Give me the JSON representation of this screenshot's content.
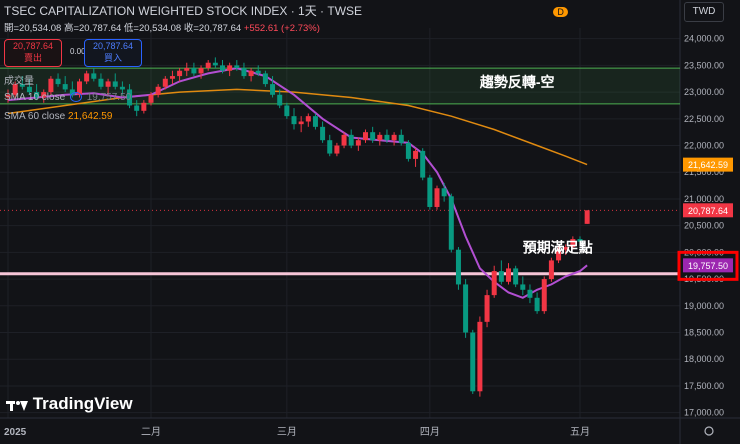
{
  "header": {
    "title": "TSEC CAPITALIZATION WEIGHTED STOCK INDEX · 1天 · TWSE",
    "ohlc_open": "開=20,534.08",
    "ohlc_high": "高=20,787.64",
    "ohlc_low": "低=20,534.08",
    "ohlc_close": "收=20,787.64",
    "ohlc_change": "+552.61 (+2.73%)"
  },
  "trade": {
    "sell_price": "20,787.64",
    "sell_label": "賣出",
    "spread": "0.00",
    "buy_price": "20,787.64",
    "buy_label": "買入"
  },
  "legend": {
    "volume": "成交量",
    "ma10_name": "SMA 10 close",
    "ma10_value": "19,757.50",
    "ma60_name": "SMA 60 close",
    "ma60_value": "21,642.59"
  },
  "toolbar": {
    "currency": "TWD",
    "d_badge": "D"
  },
  "watermark": "TradingView",
  "chart_data": {
    "type": "candlestick",
    "title": "TSEC CAPITALIZATION WEIGHTED STOCK INDEX",
    "ylim": [
      16900,
      24200
    ],
    "yticks": [
      24000,
      23500,
      23000,
      22500,
      22000,
      21500,
      21000,
      20500,
      20000,
      19500,
      19000,
      18500,
      18000,
      17500,
      17000
    ],
    "ytick_labels": [
      "24,000.00",
      "23,500.00",
      "23,000.00",
      "22,500.00",
      "22,000.00",
      "21,500.00",
      "21,000.00",
      "20,500.00",
      "20,000.00",
      "19,500.00",
      "19,000.00",
      "18,500.00",
      "18,000.00",
      "17,500.00",
      "17,000.00"
    ],
    "x_labels": [
      {
        "i": 0,
        "label": "2025"
      },
      {
        "i": 20,
        "label": "二月"
      },
      {
        "i": 39,
        "label": "三月"
      },
      {
        "i": 59,
        "label": "四月"
      },
      {
        "i": 80,
        "label": "五月"
      }
    ],
    "n_slots": 90,
    "candles": [
      {
        "i": 0,
        "o": 22900,
        "h": 23050,
        "l": 22800,
        "c": 22950
      },
      {
        "i": 1,
        "o": 22950,
        "h": 23200,
        "l": 22900,
        "c": 23150
      },
      {
        "i": 2,
        "o": 23150,
        "h": 23300,
        "l": 23050,
        "c": 23100
      },
      {
        "i": 3,
        "o": 23100,
        "h": 23250,
        "l": 22950,
        "c": 23000
      },
      {
        "i": 4,
        "o": 23000,
        "h": 23150,
        "l": 22850,
        "c": 22900
      },
      {
        "i": 5,
        "o": 22900,
        "h": 23050,
        "l": 22800,
        "c": 23000
      },
      {
        "i": 6,
        "o": 23000,
        "h": 23300,
        "l": 22950,
        "c": 23250
      },
      {
        "i": 7,
        "o": 23250,
        "h": 23350,
        "l": 23100,
        "c": 23150
      },
      {
        "i": 8,
        "o": 23150,
        "h": 23300,
        "l": 23000,
        "c": 23050
      },
      {
        "i": 9,
        "o": 23050,
        "h": 23200,
        "l": 22900,
        "c": 22950
      },
      {
        "i": 10,
        "o": 22950,
        "h": 23250,
        "l": 22900,
        "c": 23200
      },
      {
        "i": 11,
        "o": 23200,
        "h": 23400,
        "l": 23150,
        "c": 23350
      },
      {
        "i": 12,
        "o": 23350,
        "h": 23450,
        "l": 23200,
        "c": 23250
      },
      {
        "i": 13,
        "o": 23250,
        "h": 23350,
        "l": 23050,
        "c": 23100
      },
      {
        "i": 14,
        "o": 23100,
        "h": 23250,
        "l": 22950,
        "c": 23200
      },
      {
        "i": 15,
        "o": 23200,
        "h": 23350,
        "l": 23050,
        "c": 23100
      },
      {
        "i": 16,
        "o": 23100,
        "h": 23200,
        "l": 22950,
        "c": 23050
      },
      {
        "i": 17,
        "o": 23050,
        "h": 23150,
        "l": 22700,
        "c": 22750
      },
      {
        "i": 18,
        "o": 22750,
        "h": 22850,
        "l": 22550,
        "c": 22650
      },
      {
        "i": 19,
        "o": 22650,
        "h": 22850,
        "l": 22600,
        "c": 22800
      },
      {
        "i": 20,
        "o": 22800,
        "h": 23000,
        "l": 22750,
        "c": 22950
      },
      {
        "i": 21,
        "o": 22950,
        "h": 23150,
        "l": 22900,
        "c": 23100
      },
      {
        "i": 22,
        "o": 23100,
        "h": 23300,
        "l": 23050,
        "c": 23250
      },
      {
        "i": 23,
        "o": 23250,
        "h": 23400,
        "l": 23150,
        "c": 23300
      },
      {
        "i": 24,
        "o": 23300,
        "h": 23450,
        "l": 23200,
        "c": 23400
      },
      {
        "i": 25,
        "o": 23400,
        "h": 23550,
        "l": 23300,
        "c": 23450
      },
      {
        "i": 26,
        "o": 23450,
        "h": 23550,
        "l": 23300,
        "c": 23350
      },
      {
        "i": 27,
        "o": 23350,
        "h": 23500,
        "l": 23250,
        "c": 23450
      },
      {
        "i": 28,
        "o": 23450,
        "h": 23600,
        "l": 23400,
        "c": 23550
      },
      {
        "i": 29,
        "o": 23550,
        "h": 23650,
        "l": 23450,
        "c": 23500
      },
      {
        "i": 30,
        "o": 23500,
        "h": 23600,
        "l": 23350,
        "c": 23400
      },
      {
        "i": 31,
        "o": 23400,
        "h": 23550,
        "l": 23300,
        "c": 23500
      },
      {
        "i": 32,
        "o": 23500,
        "h": 23600,
        "l": 23400,
        "c": 23450
      },
      {
        "i": 33,
        "o": 23450,
        "h": 23550,
        "l": 23250,
        "c": 23300
      },
      {
        "i": 34,
        "o": 23300,
        "h": 23450,
        "l": 23200,
        "c": 23400
      },
      {
        "i": 35,
        "o": 23400,
        "h": 23500,
        "l": 23300,
        "c": 23350
      },
      {
        "i": 36,
        "o": 23350,
        "h": 23400,
        "l": 23100,
        "c": 23150
      },
      {
        "i": 37,
        "o": 23150,
        "h": 23300,
        "l": 22900,
        "c": 22950
      },
      {
        "i": 38,
        "o": 22950,
        "h": 23050,
        "l": 22700,
        "c": 22750
      },
      {
        "i": 39,
        "o": 22750,
        "h": 22800,
        "l": 22500,
        "c": 22550
      },
      {
        "i": 40,
        "o": 22550,
        "h": 22700,
        "l": 22300,
        "c": 22400
      },
      {
        "i": 41,
        "o": 22400,
        "h": 22550,
        "l": 22250,
        "c": 22450
      },
      {
        "i": 42,
        "o": 22450,
        "h": 22600,
        "l": 22350,
        "c": 22550
      },
      {
        "i": 43,
        "o": 22550,
        "h": 22600,
        "l": 22300,
        "c": 22350
      },
      {
        "i": 44,
        "o": 22350,
        "h": 22450,
        "l": 22050,
        "c": 22100
      },
      {
        "i": 45,
        "o": 22100,
        "h": 22200,
        "l": 21800,
        "c": 21850
      },
      {
        "i": 46,
        "o": 21850,
        "h": 22050,
        "l": 21800,
        "c": 22000
      },
      {
        "i": 47,
        "o": 22000,
        "h": 22250,
        "l": 21950,
        "c": 22200
      },
      {
        "i": 48,
        "o": 22200,
        "h": 22300,
        "l": 21950,
        "c": 22000
      },
      {
        "i": 49,
        "o": 22000,
        "h": 22150,
        "l": 21900,
        "c": 22100
      },
      {
        "i": 50,
        "o": 22100,
        "h": 22300,
        "l": 22050,
        "c": 22250
      },
      {
        "i": 51,
        "o": 22250,
        "h": 22350,
        "l": 22050,
        "c": 22100
      },
      {
        "i": 52,
        "o": 22100,
        "h": 22250,
        "l": 22000,
        "c": 22200
      },
      {
        "i": 53,
        "o": 22200,
        "h": 22300,
        "l": 22050,
        "c": 22100
      },
      {
        "i": 54,
        "o": 22100,
        "h": 22250,
        "l": 22000,
        "c": 22200
      },
      {
        "i": 55,
        "o": 22200,
        "h": 22300,
        "l": 22000,
        "c": 22050
      },
      {
        "i": 56,
        "o": 22050,
        "h": 22100,
        "l": 21700,
        "c": 21750
      },
      {
        "i": 57,
        "o": 21750,
        "h": 21950,
        "l": 21600,
        "c": 21900
      },
      {
        "i": 58,
        "o": 21900,
        "h": 21950,
        "l": 21350,
        "c": 21400
      },
      {
        "i": 59,
        "o": 21400,
        "h": 21450,
        "l": 20800,
        "c": 20850
      },
      {
        "i": 60,
        "o": 20850,
        "h": 21250,
        "l": 20800,
        "c": 21200
      },
      {
        "i": 61,
        "o": 21200,
        "h": 21300,
        "l": 20950,
        "c": 21050
      },
      {
        "i": 62,
        "o": 21050,
        "h": 21100,
        "l": 20000,
        "c": 20050
      },
      {
        "i": 63,
        "o": 20050,
        "h": 20100,
        "l": 19300,
        "c": 19400
      },
      {
        "i": 64,
        "o": 19400,
        "h": 19500,
        "l": 18400,
        "c": 18500
      },
      {
        "i": 65,
        "o": 18500,
        "h": 18550,
        "l": 17350,
        "c": 17400
      },
      {
        "i": 66,
        "o": 17400,
        "h": 18800,
        "l": 17300,
        "c": 18700
      },
      {
        "i": 67,
        "o": 18700,
        "h": 19300,
        "l": 18600,
        "c": 19200
      },
      {
        "i": 68,
        "o": 19200,
        "h": 19750,
        "l": 19150,
        "c": 19650
      },
      {
        "i": 69,
        "o": 19650,
        "h": 19850,
        "l": 19400,
        "c": 19450
      },
      {
        "i": 70,
        "o": 19450,
        "h": 19800,
        "l": 19400,
        "c": 19700
      },
      {
        "i": 71,
        "o": 19700,
        "h": 19750,
        "l": 19350,
        "c": 19400
      },
      {
        "i": 72,
        "o": 19400,
        "h": 19550,
        "l": 19200,
        "c": 19300
      },
      {
        "i": 73,
        "o": 19300,
        "h": 19400,
        "l": 19050,
        "c": 19150
      },
      {
        "i": 74,
        "o": 19150,
        "h": 19250,
        "l": 18850,
        "c": 18900
      },
      {
        "i": 75,
        "o": 18900,
        "h": 19550,
        "l": 18850,
        "c": 19500
      },
      {
        "i": 76,
        "o": 19500,
        "h": 19900,
        "l": 19450,
        "c": 19850
      },
      {
        "i": 77,
        "o": 19850,
        "h": 20100,
        "l": 19800,
        "c": 20050
      },
      {
        "i": 78,
        "o": 20050,
        "h": 20150,
        "l": 19950,
        "c": 20100
      },
      {
        "i": 79,
        "o": 20100,
        "h": 20300,
        "l": 20050,
        "c": 20250
      },
      {
        "i": 80,
        "o": 20250,
        "h": 20300,
        "l": 20150,
        "c": 20200
      },
      {
        "i": 81,
        "o": 20534.08,
        "h": 20787.64,
        "l": 20534.08,
        "c": 20787.64
      }
    ],
    "ma10": [
      {
        "i": 0,
        "v": 22850
      },
      {
        "i": 4,
        "v": 22900
      },
      {
        "i": 8,
        "v": 22950
      },
      {
        "i": 12,
        "v": 22980
      },
      {
        "i": 16,
        "v": 22900
      },
      {
        "i": 20,
        "v": 22950
      },
      {
        "i": 24,
        "v": 23200
      },
      {
        "i": 28,
        "v": 23350
      },
      {
        "i": 32,
        "v": 23450
      },
      {
        "i": 36,
        "v": 23300
      },
      {
        "i": 40,
        "v": 22950
      },
      {
        "i": 44,
        "v": 22500
      },
      {
        "i": 48,
        "v": 22150
      },
      {
        "i": 52,
        "v": 22100
      },
      {
        "i": 56,
        "v": 22050
      },
      {
        "i": 58,
        "v": 21850
      },
      {
        "i": 60,
        "v": 21500
      },
      {
        "i": 62,
        "v": 21000
      },
      {
        "i": 64,
        "v": 20300
      },
      {
        "i": 66,
        "v": 19700
      },
      {
        "i": 68,
        "v": 19450
      },
      {
        "i": 70,
        "v": 19250
      },
      {
        "i": 72,
        "v": 19150
      },
      {
        "i": 74,
        "v": 19300
      },
      {
        "i": 76,
        "v": 19400
      },
      {
        "i": 78,
        "v": 19550
      },
      {
        "i": 80,
        "v": 19650
      },
      {
        "i": 81,
        "v": 19757.5
      }
    ],
    "ma60": [
      {
        "i": 0,
        "v": 22600
      },
      {
        "i": 8,
        "v": 22750
      },
      {
        "i": 16,
        "v": 22900
      },
      {
        "i": 24,
        "v": 23000
      },
      {
        "i": 32,
        "v": 23050
      },
      {
        "i": 40,
        "v": 23000
      },
      {
        "i": 48,
        "v": 22900
      },
      {
        "i": 56,
        "v": 22750
      },
      {
        "i": 62,
        "v": 22550
      },
      {
        "i": 68,
        "v": 22300
      },
      {
        "i": 74,
        "v": 22000
      },
      {
        "i": 78,
        "v": 21800
      },
      {
        "i": 81,
        "v": 21642.59
      }
    ],
    "resistance_band": {
      "top": 23450,
      "bottom": 22780
    },
    "support_level": 19600,
    "annotations": [
      {
        "text": "趨勢反轉-空",
        "i": 66,
        "y": 23100
      },
      {
        "text": "預期滿足點",
        "i": 72,
        "y": 20000
      }
    ],
    "price_labels": [
      {
        "value": 21642.59,
        "label": "21,642.59",
        "color": "#ff9800"
      },
      {
        "value": 20787.64,
        "label": "20,787.64",
        "color": "#f23645"
      },
      {
        "value": 19757.5,
        "label": "19,757.50",
        "color": "#9c27b0"
      }
    ],
    "colors": {
      "up": "#f23645",
      "down": "#089981",
      "ma10": "#b24fd2",
      "ma60": "#e08a10",
      "band": "#4caf50",
      "support": "#f7c6d8",
      "highlight": "#ff0000"
    }
  }
}
